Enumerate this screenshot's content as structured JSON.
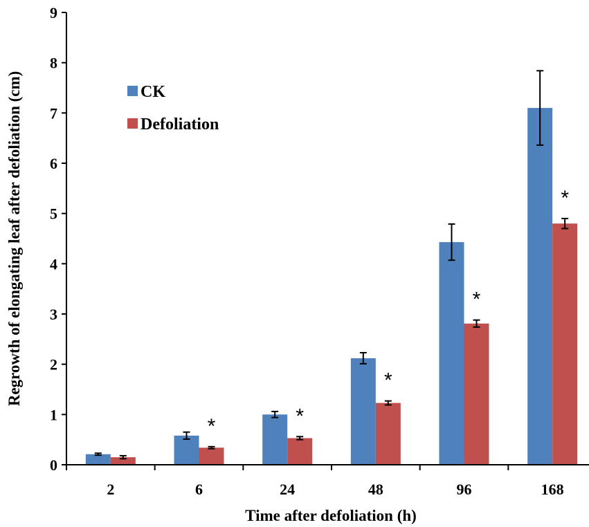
{
  "chart_data": {
    "type": "bar",
    "xlabel": "Time after defoliation (h)",
    "ylabel": "Regrowth of elongating leaf after defoliation (cm)",
    "ylim": [
      0,
      9
    ],
    "yticks": [
      0,
      1,
      2,
      3,
      4,
      5,
      6,
      7,
      8,
      9
    ],
    "grid": false,
    "legend_position": "top-left",
    "categories": [
      "2",
      "6",
      "24",
      "48",
      "96",
      "168"
    ],
    "series": [
      {
        "name": "CK",
        "color": "#4F81BD",
        "values": [
          0.21,
          0.58,
          1.0,
          2.12,
          4.43,
          7.1
        ],
        "errors": [
          0.02,
          0.07,
          0.06,
          0.11,
          0.36,
          0.74
        ]
      },
      {
        "name": "Defoliation",
        "color": "#C0504D",
        "values": [
          0.15,
          0.34,
          0.53,
          1.23,
          2.81,
          4.8
        ],
        "errors": [
          0.03,
          0.02,
          0.03,
          0.04,
          0.07,
          0.1
        ]
      }
    ],
    "annotations": [
      "",
      "*",
      "*",
      "*",
      "*",
      "*"
    ]
  }
}
